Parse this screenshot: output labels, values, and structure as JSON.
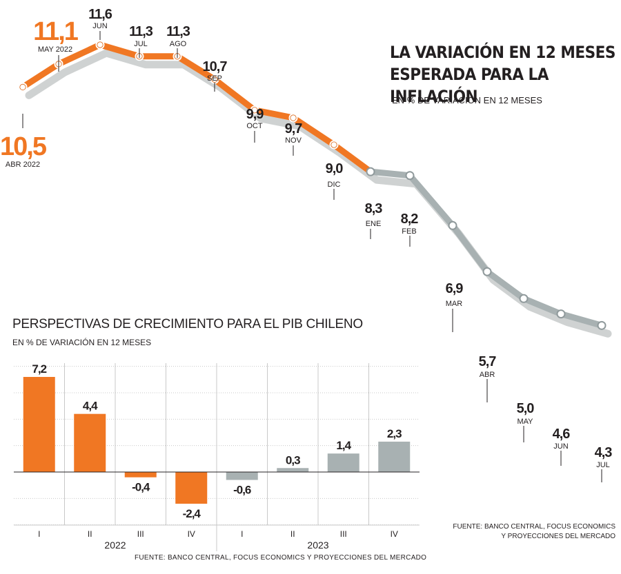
{
  "line_chart": {
    "title_line1": "LA VARIACIÓN EN 12 MESES",
    "title_line2": "ESPERADA PARA LA INFLACIÓN",
    "subtitle": "EN % DE VARIACIÓN EN 12 MESES",
    "source": "FUENTE: BANCO CENTRAL, FOCUS ECONOMICS Y PROYECCIONES DEL MERCADO"
  },
  "bar_chart": {
    "title": "PERSPECTIVAS DE CRECIMIENTO PARA EL PIB CHILENO",
    "subtitle": "EN % DE VARIACIÓN EN 12 MESES",
    "source": "FUENTE: BANCO CENTRAL, FOCUS ECONOMICS Y PROYECCIONES DEL MERCADO"
  },
  "colors": {
    "actual": "#f07723",
    "forecast": "#a8b1b2",
    "shadow": "#cfd2d2",
    "grid": "#c8c8c8",
    "text": "#231f20"
  },
  "chart_data": [
    {
      "type": "line",
      "x": [
        "ABR 2022",
        "MAY 2022",
        "JUN",
        "JUL",
        "AGO",
        "SEP",
        "OCT",
        "NOV",
        "DIC",
        "ENE",
        "FEB",
        "MAR",
        "ABR",
        "MAY",
        "JUN",
        "JUL"
      ],
      "values": [
        "10,5",
        "11,1",
        "11,6",
        "11,3",
        "11,3",
        "10,7",
        "9,9",
        "9,7",
        "9,0",
        "8,3",
        "8,2",
        "6,9",
        "5,7",
        "5,0",
        "4,6",
        "4,3"
      ],
      "series": [
        {
          "segment": "orange",
          "from_index": 0,
          "to_index": 9
        },
        {
          "segment": "gray",
          "from_index": 9,
          "to_index": 15
        }
      ],
      "grid": false
    },
    {
      "type": "bar",
      "categories": [
        "I",
        "II",
        "III",
        "IV",
        "I",
        "II",
        "III",
        "IV"
      ],
      "year_groups": [
        "2022",
        "2023"
      ],
      "values": [
        "7,2",
        "4,4",
        "-0,4",
        "-2,4",
        "-0,6",
        "0,3",
        "1,4",
        "2,3"
      ],
      "series_colors": [
        "orange",
        "orange",
        "orange",
        "orange",
        "gray",
        "gray",
        "gray",
        "gray"
      ],
      "ylim": [
        -4,
        8
      ],
      "grid": true
    }
  ]
}
